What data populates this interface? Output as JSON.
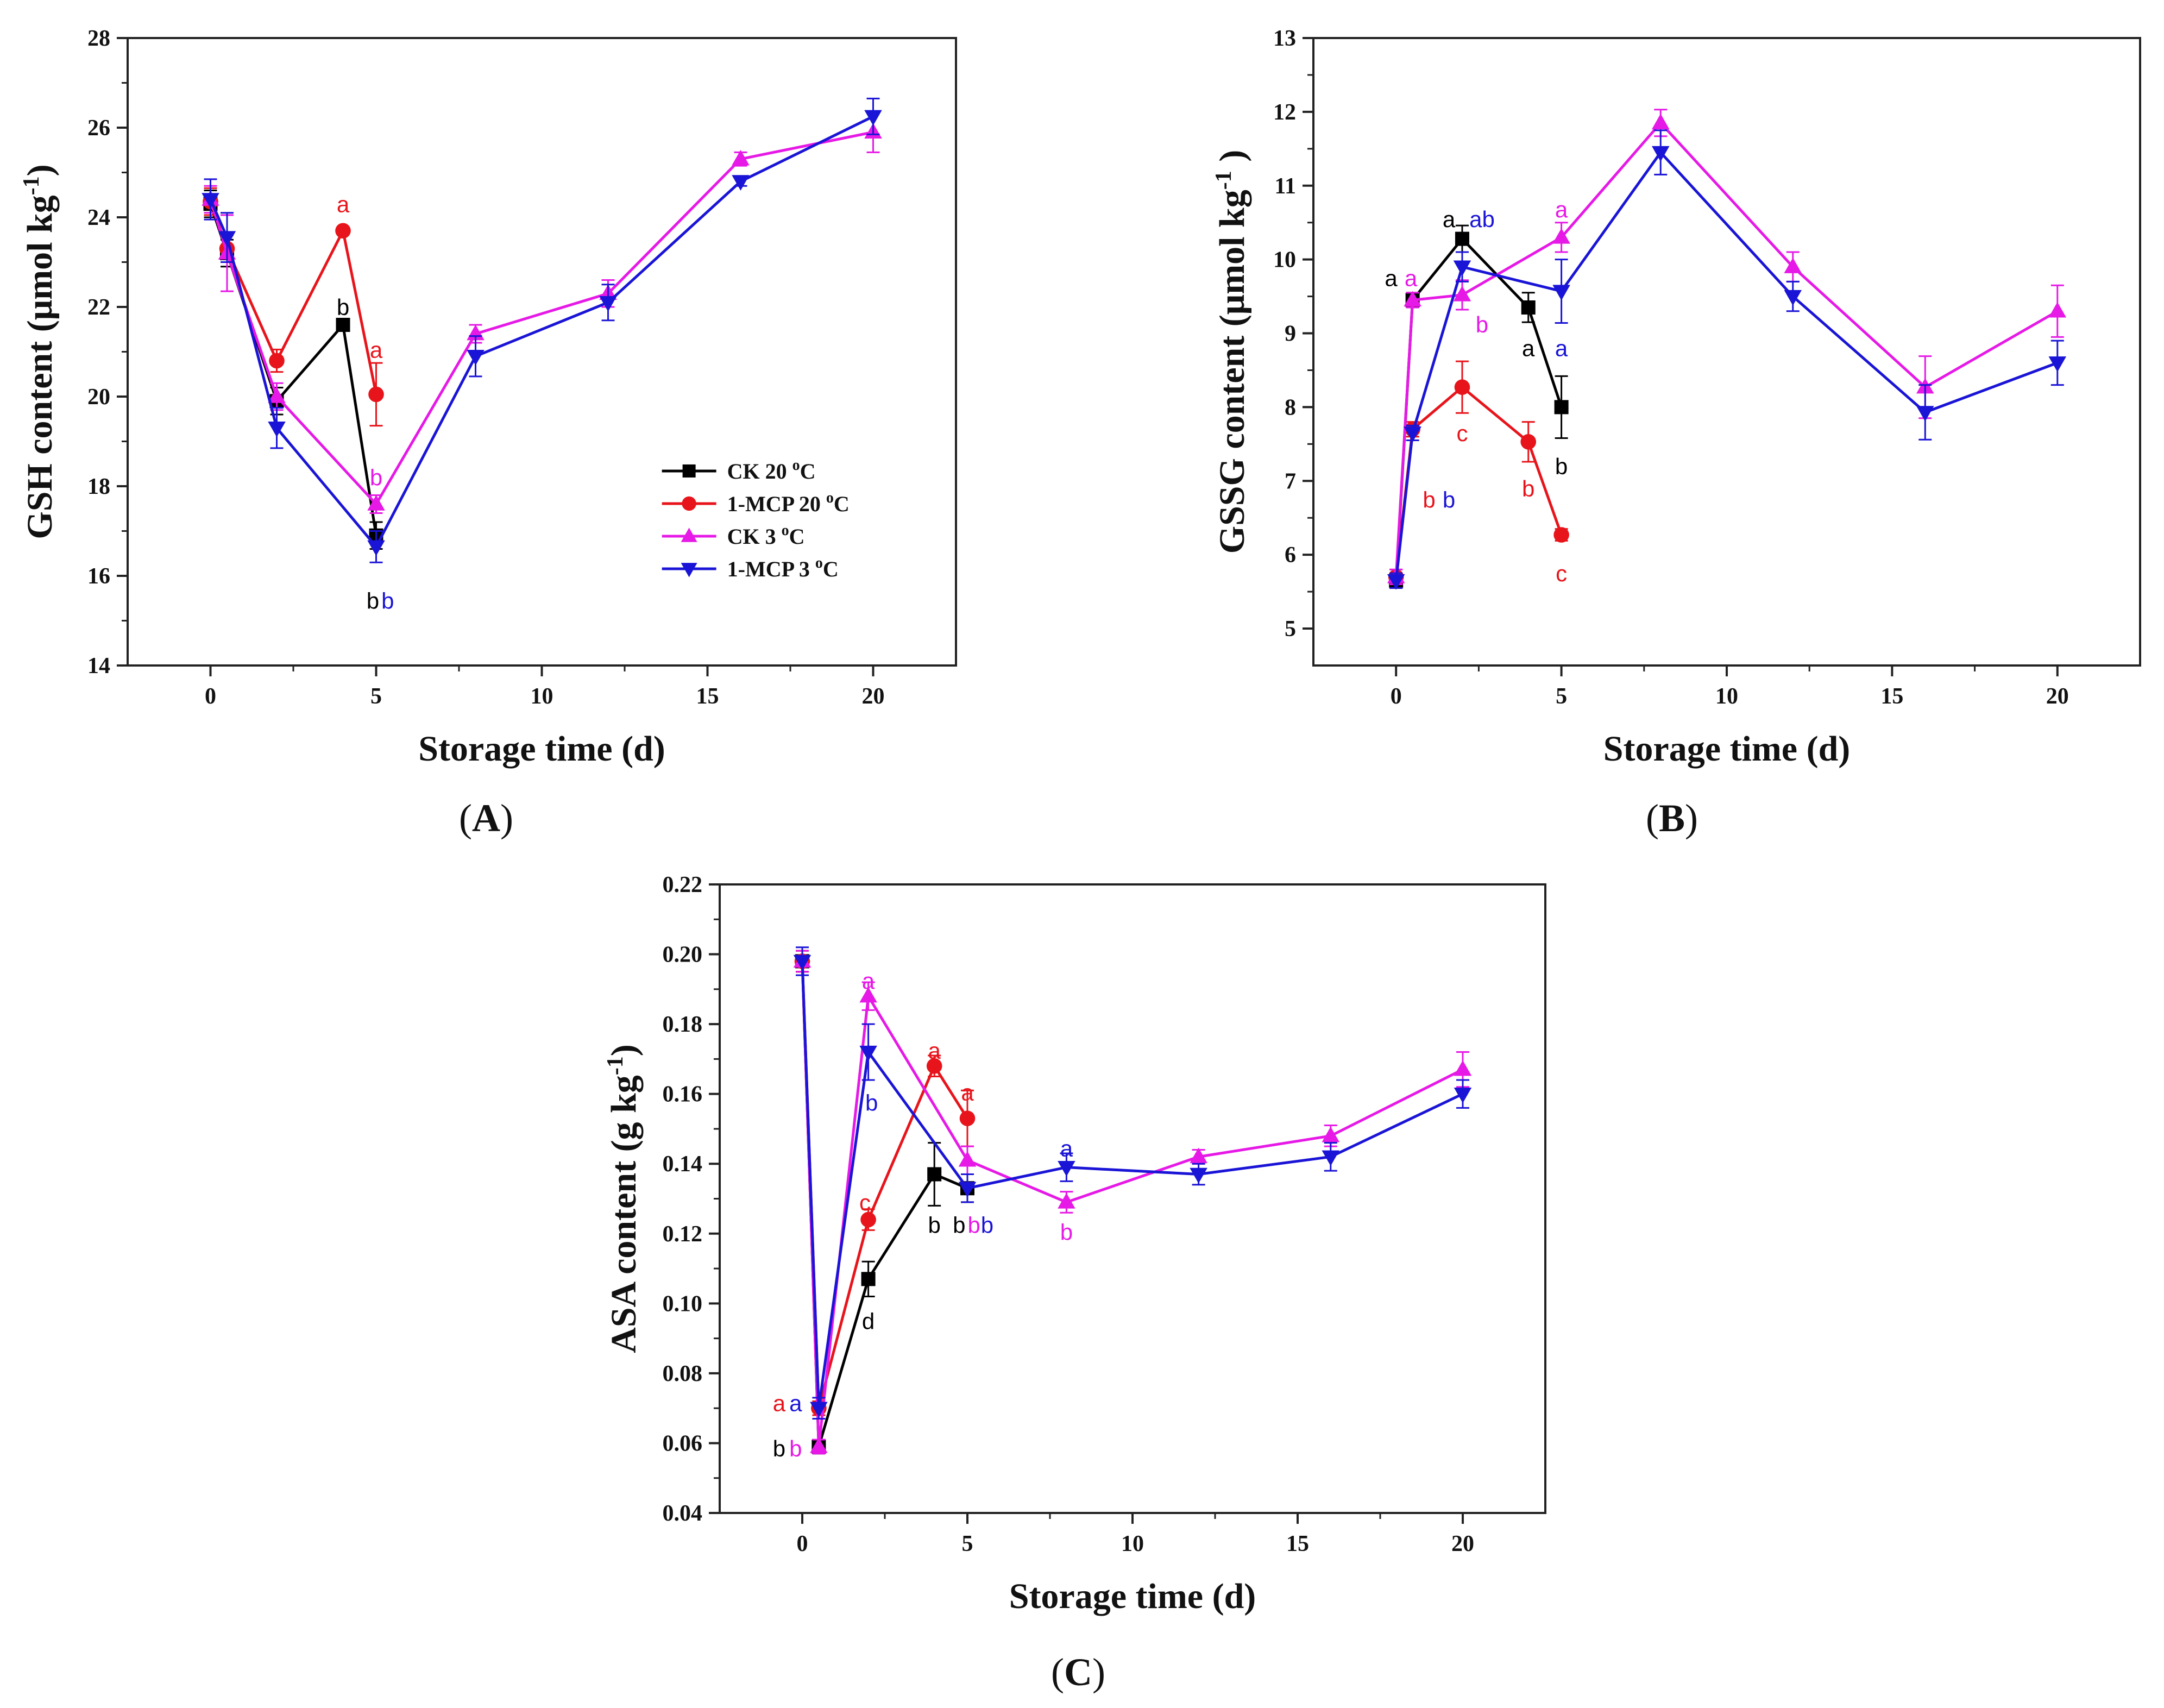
{
  "figure": {
    "panel_labels": [
      {
        "open": "(",
        "letter": "A",
        "close": ")"
      },
      {
        "open": "(",
        "letter": "B",
        "close": ")"
      },
      {
        "open": "(",
        "letter": "C",
        "close": ")"
      }
    ]
  },
  "colors": {
    "CK 20 oC": "#000000",
    "1-MCP 20 oC": "#e8141b",
    "CK 3 oC": "#e619e6",
    "1-MCP 3 oC": "#1a14d6"
  },
  "legend": [
    {
      "base": "CK 20 ",
      "sup": "o",
      "unit": "C",
      "marker": "square",
      "key": "CK 20 oC"
    },
    {
      "base": "1-MCP 20 ",
      "sup": "o",
      "unit": "C",
      "marker": "circle",
      "key": "1-MCP 20 oC"
    },
    {
      "base": "CK 3 ",
      "sup": "o",
      "unit": "C",
      "marker": "tri-up",
      "key": "CK 3 oC"
    },
    {
      "base": "1-MCP 3 ",
      "sup": "o",
      "unit": "C",
      "marker": "tri-down",
      "key": "1-MCP 3 oC"
    }
  ],
  "chart_data": [
    {
      "type": "line",
      "panel": "A",
      "title": "",
      "xlabel": "Storage time (d)",
      "ylabel": {
        "pre": "GSH content (μmol kg",
        "sup": "-1",
        "post": ")"
      },
      "xlim": [
        -2.5,
        22.5
      ],
      "ylim": [
        14,
        28
      ],
      "xticks": [
        0,
        5,
        10,
        15,
        20
      ],
      "yticks": [
        14,
        16,
        18,
        20,
        22,
        24,
        26,
        28
      ],
      "legend_position": "bottom-right",
      "series": [
        {
          "name": "CK 20 oC",
          "marker": "square",
          "x": [
            0,
            0.5,
            2,
            4,
            5
          ],
          "y": [
            24.3,
            23.2,
            19.9,
            21.6,
            16.9
          ],
          "err": [
            0.3,
            0.3,
            0.3,
            0,
            0.3
          ]
        },
        {
          "name": "1-MCP 20 oC",
          "marker": "circle",
          "x": [
            0,
            0.5,
            2,
            4,
            5
          ],
          "y": [
            24.35,
            23.3,
            20.8,
            23.7,
            20.05
          ],
          "err": [
            0.3,
            0.3,
            0.25,
            0,
            0.7
          ]
        },
        {
          "name": "CK 3 oC",
          "marker": "tri-up",
          "x": [
            0,
            0.5,
            2,
            5,
            8,
            12,
            16,
            20
          ],
          "y": [
            24.4,
            23.2,
            20.0,
            17.6,
            21.4,
            22.3,
            25.3,
            25.9
          ],
          "err": [
            0.3,
            0.85,
            0.3,
            0.2,
            0.2,
            0.3,
            0.15,
            0.45
          ]
        },
        {
          "name": "1-MCP 3 oC",
          "marker": "tri-down",
          "x": [
            0,
            0.5,
            2,
            5,
            8,
            12,
            16,
            20
          ],
          "y": [
            24.4,
            23.55,
            19.3,
            16.65,
            20.9,
            22.1,
            24.8,
            26.25
          ],
          "err": [
            0.45,
            0.55,
            0.45,
            0.35,
            0.45,
            0.4,
            0.1,
            0.4
          ]
        }
      ],
      "annotations": [
        {
          "text": "a",
          "x": 4,
          "y": 24.3,
          "series": "1-MCP 20 oC"
        },
        {
          "text": "b",
          "x": 4,
          "y": 22.0,
          "series": "CK 20 oC"
        },
        {
          "text": "a",
          "x": 5,
          "y": 21.05,
          "series": "1-MCP 20 oC"
        },
        {
          "text": "b",
          "x": 5,
          "y": 18.2,
          "series": "CK 3 oC"
        },
        {
          "text": "b",
          "x": 4.9,
          "y": 15.45,
          "series": "CK 20 oC"
        },
        {
          "text": "b",
          "x": 5.35,
          "y": 15.45,
          "series": "1-MCP 3 oC"
        }
      ]
    },
    {
      "type": "line",
      "panel": "B",
      "title": "",
      "xlabel": "Storage time (d)",
      "ylabel": {
        "pre": "GSSG content (μmol kg",
        "sup": "-1",
        "post": " )"
      },
      "xlim": [
        -2.5,
        22.5
      ],
      "ylim": [
        4.5,
        13
      ],
      "xticks": [
        0,
        5,
        10,
        15,
        20
      ],
      "yticks": [
        5,
        6,
        7,
        8,
        9,
        10,
        11,
        12,
        13
      ],
      "series": [
        {
          "name": "CK 20 oC",
          "marker": "square",
          "x": [
            0,
            0.5,
            2,
            4,
            5
          ],
          "y": [
            5.65,
            9.45,
            10.28,
            9.35,
            8.0
          ],
          "err": [
            0.1,
            0.1,
            0.18,
            0.2,
            0.42
          ]
        },
        {
          "name": "1-MCP 20 oC",
          "marker": "circle",
          "x": [
            0,
            0.5,
            2,
            4,
            5
          ],
          "y": [
            5.7,
            7.7,
            8.27,
            7.53,
            6.27
          ],
          "err": [
            0.1,
            0.1,
            0.35,
            0.27,
            0.08
          ]
        },
        {
          "name": "CK 3 oC",
          "marker": "tri-up",
          "x": [
            0,
            0.5,
            2,
            5,
            8,
            12,
            16,
            20
          ],
          "y": [
            5.7,
            9.45,
            9.52,
            10.3,
            11.85,
            9.9,
            8.27,
            9.3
          ],
          "err": [
            0.1,
            0.1,
            0.2,
            0.2,
            0.18,
            0.2,
            0.42,
            0.35
          ]
        },
        {
          "name": "1-MCP 3 oC",
          "marker": "tri-down",
          "x": [
            0,
            0.5,
            2,
            5,
            8,
            12,
            16,
            20
          ],
          "y": [
            5.65,
            7.65,
            9.9,
            9.57,
            11.45,
            9.5,
            7.93,
            8.6
          ],
          "err": [
            0.1,
            0.1,
            0.2,
            0.43,
            0.3,
            0.2,
            0.37,
            0.3
          ]
        }
      ],
      "annotations": [
        {
          "text": "a",
          "x": -0.15,
          "y": 9.75,
          "series": "CK 20 oC"
        },
        {
          "text": "a",
          "x": 0.45,
          "y": 9.75,
          "series": "CK 3 oC"
        },
        {
          "text": "a",
          "x": 1.6,
          "y": 10.55,
          "series": "CK 20 oC"
        },
        {
          "text": "ab",
          "x": 2.6,
          "y": 10.55,
          "series": "1-MCP 3 oC"
        },
        {
          "text": "a",
          "x": 5,
          "y": 10.68,
          "series": "CK 3 oC"
        },
        {
          "text": "b",
          "x": 1.0,
          "y": 6.75,
          "series": "1-MCP 20 oC"
        },
        {
          "text": "b",
          "x": 1.6,
          "y": 6.75,
          "series": "1-MCP 3 oC"
        },
        {
          "text": "b",
          "x": 2.6,
          "y": 9.12,
          "series": "CK 3 oC"
        },
        {
          "text": "c",
          "x": 2,
          "y": 7.65,
          "series": "1-MCP 20 oC"
        },
        {
          "text": "a",
          "x": 4,
          "y": 8.8,
          "series": "CK 20 oC"
        },
        {
          "text": "a",
          "x": 5,
          "y": 8.8,
          "series": "1-MCP 3 oC"
        },
        {
          "text": "b",
          "x": 4,
          "y": 6.9,
          "series": "1-MCP 20 oC"
        },
        {
          "text": "b",
          "x": 5,
          "y": 7.2,
          "series": "CK 20 oC"
        },
        {
          "text": "c",
          "x": 5,
          "y": 5.75,
          "series": "1-MCP 20 oC"
        }
      ]
    },
    {
      "type": "line",
      "panel": "C",
      "title": "",
      "xlabel": "Storage time (d)",
      "ylabel": {
        "pre": "ASA content (g kg",
        "sup": "-1",
        "post": ")"
      },
      "xlim": [
        -2.5,
        22.5
      ],
      "ylim": [
        0.04,
        0.22
      ],
      "xticks": [
        0,
        5,
        10,
        15,
        20
      ],
      "yticks": [
        0.04,
        0.06,
        0.08,
        0.1,
        0.12,
        0.14,
        0.16,
        0.18,
        0.2,
        0.22
      ],
      "series": [
        {
          "name": "CK 20 oC",
          "marker": "square",
          "x": [
            0,
            0.5,
            2,
            4,
            5
          ],
          "y": [
            0.198,
            0.059,
            0.107,
            0.137,
            0.133
          ],
          "err": [
            0.003,
            0.002,
            0.005,
            0.009,
            0.004
          ]
        },
        {
          "name": "1-MCP 20 oC",
          "marker": "circle",
          "x": [
            0,
            0.5,
            2,
            4,
            5
          ],
          "y": [
            0.198,
            0.07,
            0.124,
            0.168,
            0.153
          ],
          "err": [
            0.003,
            0.002,
            0.003,
            0.003,
            0.008
          ]
        },
        {
          "name": "CK 3 oC",
          "marker": "tri-up",
          "x": [
            0,
            0.5,
            2,
            5,
            8,
            12,
            16,
            20
          ],
          "y": [
            0.198,
            0.059,
            0.188,
            0.141,
            0.129,
            0.142,
            0.148,
            0.167
          ],
          "err": [
            0.003,
            0.002,
            0.004,
            0.004,
            0.003,
            0.002,
            0.003,
            0.005
          ]
        },
        {
          "name": "1-MCP 3 oC",
          "marker": "tri-down",
          "x": [
            0,
            0.5,
            2,
            5,
            8,
            12,
            16,
            20
          ],
          "y": [
            0.198,
            0.07,
            0.172,
            0.133,
            0.139,
            0.137,
            0.142,
            0.16
          ],
          "err": [
            0.004,
            0.003,
            0.008,
            0.004,
            0.004,
            0.003,
            0.004,
            0.004
          ]
        }
      ],
      "annotations": [
        {
          "text": "a",
          "x": -0.7,
          "y": 0.0715,
          "series": "1-MCP 20 oC"
        },
        {
          "text": "a",
          "x": -0.2,
          "y": 0.0715,
          "series": "1-MCP 3 oC"
        },
        {
          "text": "b",
          "x": -0.7,
          "y": 0.0585,
          "series": "CK 20 oC"
        },
        {
          "text": "b",
          "x": -0.2,
          "y": 0.0585,
          "series": "CK 3 oC"
        },
        {
          "text": "a",
          "x": 2,
          "y": 0.1925,
          "series": "CK 3 oC"
        },
        {
          "text": "b",
          "x": 2.1,
          "y": 0.1575,
          "series": "1-MCP 3 oC"
        },
        {
          "text": "c",
          "x": 1.9,
          "y": 0.129,
          "series": "1-MCP 20 oC"
        },
        {
          "text": "d",
          "x": 2,
          "y": 0.095,
          "series": "CK 20 oC"
        },
        {
          "text": "a",
          "x": 4,
          "y": 0.1725,
          "series": "1-MCP 20 oC"
        },
        {
          "text": "a",
          "x": 5,
          "y": 0.1605,
          "series": "1-MCP 20 oC"
        },
        {
          "text": "b",
          "x": 4,
          "y": 0.1225,
          "series": "CK 20 oC"
        },
        {
          "text": "b",
          "x": 4.75,
          "y": 0.1225,
          "series": "CK 20 oC"
        },
        {
          "text": "b",
          "x": 5.2,
          "y": 0.1225,
          "series": "CK 3 oC"
        },
        {
          "text": "b",
          "x": 5.6,
          "y": 0.1225,
          "series": "1-MCP 3 oC"
        },
        {
          "text": "a",
          "x": 8,
          "y": 0.1445,
          "series": "1-MCP 3 oC"
        },
        {
          "text": "b",
          "x": 8,
          "y": 0.1205,
          "series": "CK 3 oC"
        }
      ]
    }
  ]
}
